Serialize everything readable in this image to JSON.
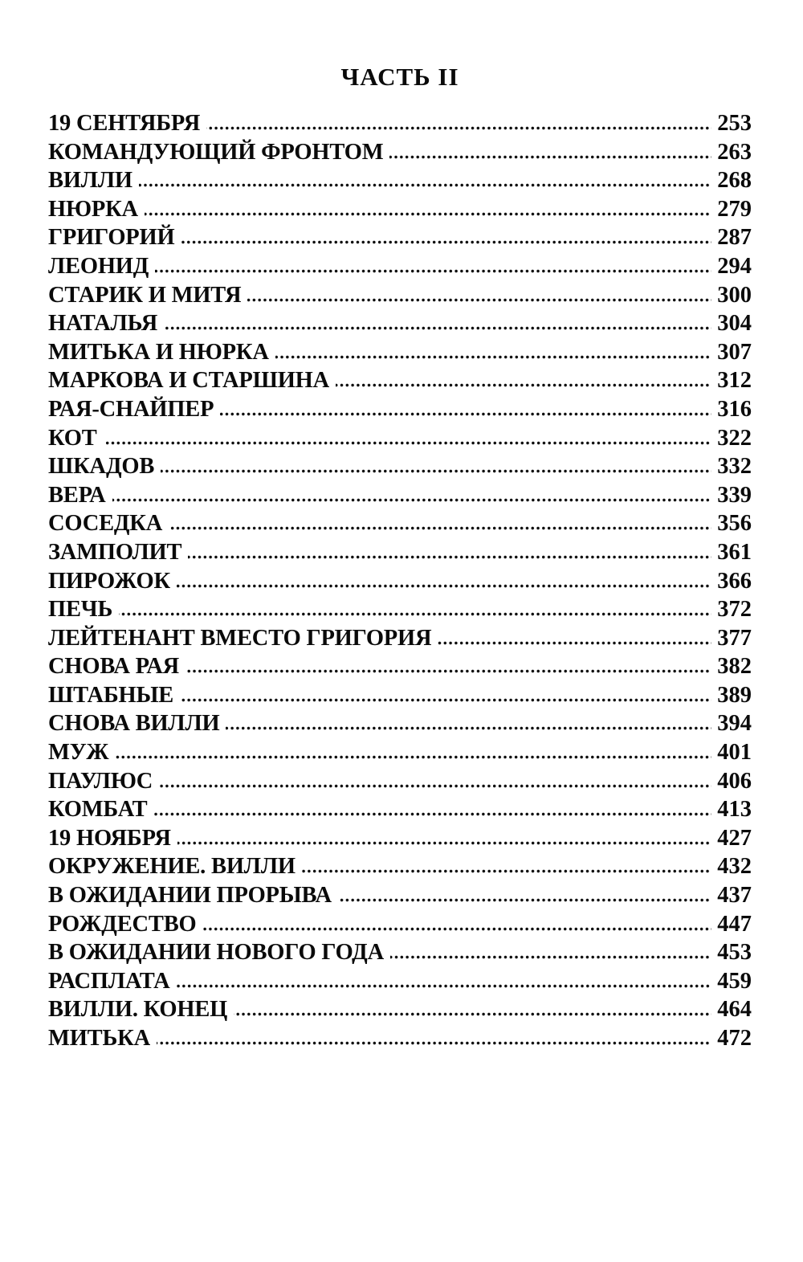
{
  "header": {
    "title": "ЧАСТЬ II"
  },
  "toc": {
    "entries": [
      {
        "title": "19 СЕНТЯБРЯ",
        "page": "253"
      },
      {
        "title": "КОМАНДУЮЩИЙ ФРОНТОМ",
        "page": "263"
      },
      {
        "title": "ВИЛЛИ",
        "page": "268"
      },
      {
        "title": "НЮРКА",
        "page": "279"
      },
      {
        "title": "ГРИГОРИЙ",
        "page": "287"
      },
      {
        "title": "ЛЕОНИД",
        "page": "294"
      },
      {
        "title": "СТАРИК И МИТЯ",
        "page": "300"
      },
      {
        "title": "НАТАЛЬЯ",
        "page": "304"
      },
      {
        "title": "МИТЬКА И НЮРКА",
        "page": "307"
      },
      {
        "title": "МАРКОВА И СТАРШИНА",
        "page": "312"
      },
      {
        "title": "РАЯ-СНАЙПЕР",
        "page": "316"
      },
      {
        "title": "КОТ",
        "page": "322"
      },
      {
        "title": "ШКАДОВ",
        "page": "332"
      },
      {
        "title": "ВЕРА",
        "page": "339"
      },
      {
        "title": "СОСЕДКА",
        "page": "356"
      },
      {
        "title": "ЗАМПОЛИТ",
        "page": "361"
      },
      {
        "title": "ПИРОЖОК",
        "page": "366"
      },
      {
        "title": "ПЕЧЬ",
        "page": "372"
      },
      {
        "title": "ЛЕЙТЕНАНТ ВМЕСТО ГРИГОРИЯ",
        "page": "377"
      },
      {
        "title": "СНОВА РАЯ",
        "page": "382"
      },
      {
        "title": "ШТАБНЫЕ",
        "page": "389"
      },
      {
        "title": "СНОВА ВИЛЛИ",
        "page": "394"
      },
      {
        "title": "МУЖ",
        "page": "401"
      },
      {
        "title": "ПАУЛЮС",
        "page": "406"
      },
      {
        "title": "КОМБАТ",
        "page": "413"
      },
      {
        "title": "19 НОЯБРЯ",
        "page": "427"
      },
      {
        "title": "ОКРУЖЕНИЕ. ВИЛЛИ",
        "page": "432"
      },
      {
        "title": "В ОЖИДАНИИ ПРОРЫВА",
        "page": "437"
      },
      {
        "title": "РОЖДЕСТВО",
        "page": "447"
      },
      {
        "title": "В ОЖИДАНИИ НОВОГО ГОДА",
        "page": "453"
      },
      {
        "title": "РАСПЛАТА",
        "page": "459"
      },
      {
        "title": "ВИЛЛИ. КОНЕЦ",
        "page": "464"
      },
      {
        "title": "МИТЬКА",
        "page": "472"
      }
    ]
  }
}
